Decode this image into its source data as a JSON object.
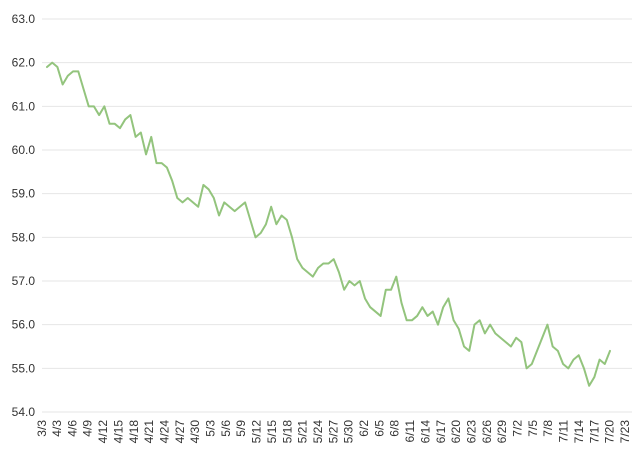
{
  "chart_data": {
    "type": "line",
    "xlim": [
      "3/3",
      "7/23"
    ],
    "ylim": [
      54.0,
      63.0
    ],
    "y_ticks": [
      "54.0",
      "55.0",
      "56.0",
      "57.0",
      "58.0",
      "59.0",
      "60.0",
      "61.0",
      "62.0",
      "63.0"
    ],
    "x_ticks": [
      "3/3",
      "4/3",
      "4/6",
      "4/9",
      "4/12",
      "4/15",
      "4/18",
      "4/21",
      "4/24",
      "4/27",
      "4/30",
      "5/3",
      "5/6",
      "5/9",
      "5/12",
      "5/15",
      "5/18",
      "5/21",
      "5/24",
      "5/27",
      "5/30",
      "6/2",
      "6/5",
      "6/8",
      "6/11",
      "6/14",
      "6/17",
      "6/20",
      "6/23",
      "6/26",
      "6/29",
      "7/2",
      "7/5",
      "7/8",
      "7/11",
      "7/14",
      "7/17",
      "7/20",
      "7/23"
    ],
    "grid": true,
    "legend": "none",
    "colors": {
      "line": "#93c47d",
      "grid": "#e6e6e6",
      "text": "#333333"
    },
    "series": [
      {
        "values": [
          61.9,
          62.0,
          61.9,
          61.5,
          61.7,
          61.8,
          61.8,
          61.4,
          61.0,
          61.0,
          60.8,
          61.0,
          60.6,
          60.6,
          60.5,
          60.7,
          60.8,
          60.3,
          60.4,
          59.9,
          60.3,
          59.7,
          59.7,
          59.6,
          59.3,
          58.9,
          58.8,
          58.9,
          58.8,
          58.7,
          59.2,
          59.1,
          58.9,
          58.5,
          58.8,
          58.7,
          58.6,
          58.7,
          58.8,
          58.4,
          58.0,
          58.1,
          58.3,
          58.7,
          58.3,
          58.5,
          58.4,
          58.0,
          57.5,
          57.3,
          57.2,
          57.1,
          57.3,
          57.4,
          57.4,
          57.5,
          57.2,
          56.8,
          57.0,
          56.9,
          57.0,
          56.6,
          56.4,
          56.3,
          56.2,
          56.8,
          56.8,
          57.1,
          56.5,
          56.1,
          56.1,
          56.2,
          56.4,
          56.2,
          56.3,
          56.0,
          56.4,
          56.6,
          56.1,
          55.9,
          55.5,
          55.4,
          56.0,
          56.1,
          55.8,
          56.0,
          55.8,
          55.7,
          55.6,
          55.5,
          55.7,
          55.6,
          55.0,
          55.1,
          55.4,
          55.7,
          56.0,
          55.5,
          55.4,
          55.1,
          55.0,
          55.2,
          55.3,
          55.0,
          54.6,
          54.8,
          55.2,
          55.1,
          55.4
        ]
      }
    ]
  }
}
